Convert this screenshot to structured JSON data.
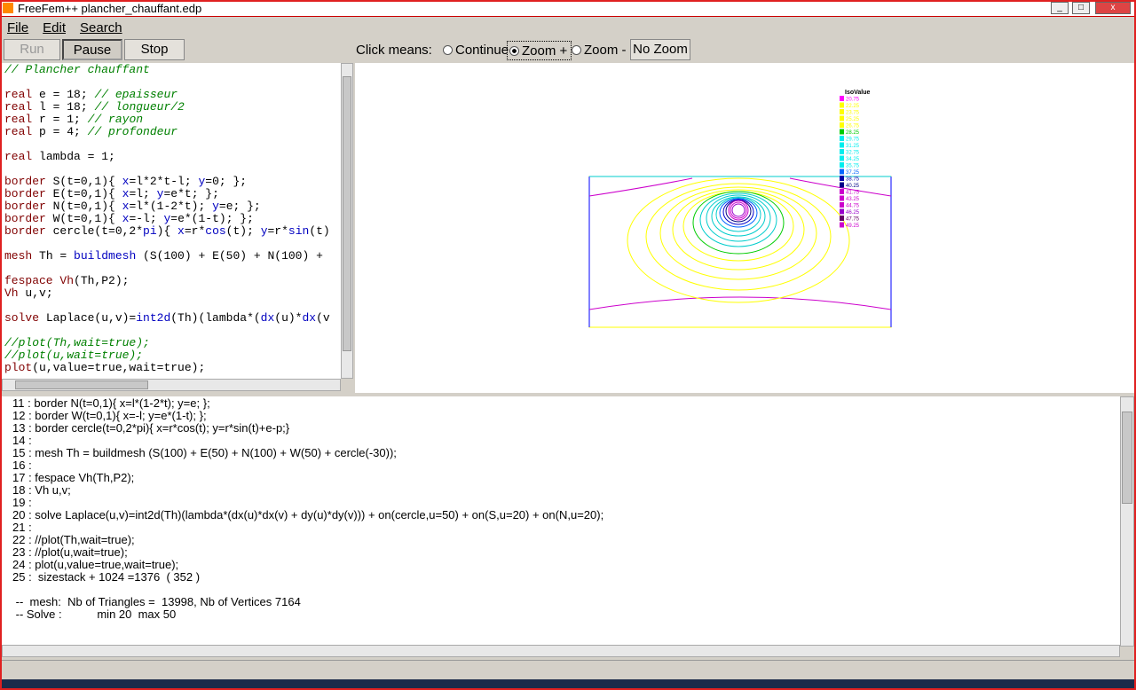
{
  "window": {
    "title": "FreeFem++ plancher_chauffant.edp"
  },
  "menu": [
    "File",
    "Edit",
    "Search"
  ],
  "toolbar": {
    "buttons": [
      "Run",
      "Pause",
      "Stop"
    ],
    "click_label": "Click means:",
    "options": [
      "Continue",
      "Zoom +",
      "Zoom -"
    ],
    "no_zoom": "No Zoom"
  },
  "editor": {
    "blocks": [
      [
        "// Plancher chauffant"
      ],
      [
        "real e = 18; // epaisseur",
        "real l = 18; // longueur/2",
        "real r = 1; // rayon",
        "real p = 4; // profondeur"
      ],
      [
        "real lambda = 1;"
      ],
      [
        "border S(t=0,1){ x=l*2*t-l; y=0; };",
        "border E(t=0,1){ x=l; y=e*t; };",
        "border N(t=0,1){ x=l*(1-2*t); y=e; };",
        "border W(t=0,1){ x=-l; y=e*(1-t); };",
        "border cercle(t=0,2*pi){ x=r*cos(t); y=r*sin(t)"
      ],
      [
        "mesh Th = buildmesh (S(100) + E(50) + N(100) +"
      ],
      [
        "fespace Vh(Th,P2);",
        "Vh u,v;"
      ],
      [
        "solve Laplace(u,v)=int2d(Th)(lambda*(dx(u)*dx(v"
      ],
      [
        "//plot(Th,wait=true);",
        "//plot(u,wait=true);",
        "plot(u,value=true,wait=true);"
      ]
    ]
  },
  "plot": {
    "legend_title": "IsoValue",
    "legend": [
      "20.75",
      "22.25",
      "23.75",
      "25.25",
      "26.75",
      "28.25",
      "29.75",
      "31.25",
      "32.75",
      "34.25",
      "35.75",
      "37.25",
      "38.75",
      "40.25",
      "41.75",
      "43.25",
      "44.75",
      "46.25",
      "47.75",
      "49.25"
    ]
  },
  "console": {
    "blocks": [
      [
        "11 : border N(t=0,1){ x=l*(1-2*t); y=e; };",
        "12 : border W(t=0,1){ x=-l; y=e*(1-t); };",
        "13 : border cercle(t=0,2*pi){ x=r*cos(t); y=r*sin(t)+e-p;}",
        "14 :",
        "15 : mesh Th = buildmesh (S(100) + E(50) + N(100) + W(50) + cercle(-30));",
        "16 :",
        "17 : fespace Vh(Th,P2);",
        "18 : Vh u,v;",
        "19 :",
        "20 : solve Laplace(u,v)=int2d(Th)(lambda*(dx(u)*dx(v) + dy(u)*dy(v))) + on(cercle,u=50) + on(S,u=20) + on(N,u=20);",
        "21 :",
        "22 : //plot(Th,wait=true);",
        "23 : //plot(u,wait=true);",
        "24 : plot(u,value=true,wait=true);",
        "25 :  sizestack + 1024 =1376  ( 352 )"
      ],
      [
        " --  mesh:  Nb of Triangles =  13998, Nb of Vertices 7164",
        " -- Solve :           min 20  max 50"
      ]
    ]
  }
}
